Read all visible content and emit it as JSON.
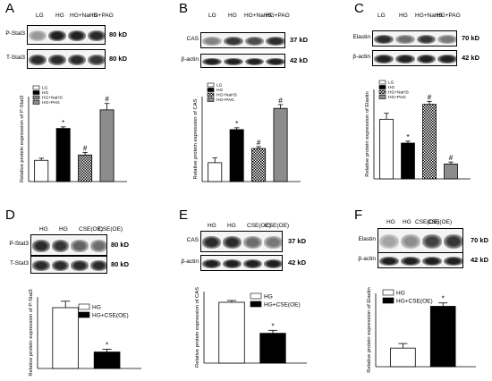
{
  "panels": [
    {
      "letter": "A",
      "lanes": [
        "LG",
        "HG",
        "HG+NaHS",
        "HG+PAG"
      ],
      "blot_rows": [
        {
          "label": "P-Stat3",
          "kd": "80 kD",
          "intensity": [
            0.35,
            0.9,
            0.9,
            0.85
          ]
        },
        {
          "label": "T-Stat3",
          "kd": "80 kD",
          "intensity": [
            0.85,
            0.85,
            0.85,
            0.8
          ]
        }
      ]
    },
    {
      "letter": "B",
      "lanes": [
        "LG",
        "HG",
        "HG+NaHS",
        "HG+PAG"
      ],
      "blot_rows": [
        {
          "label": "CAS",
          "kd": "37 kD",
          "intensity": [
            0.45,
            0.8,
            0.7,
            0.85
          ]
        },
        {
          "label": "β-actin",
          "kd": "42 kD",
          "intensity": [
            0.9,
            0.9,
            0.9,
            0.9
          ]
        }
      ]
    },
    {
      "letter": "C",
      "lanes": [
        "LG",
        "HG",
        "HG+NaHS",
        "HG+PAG"
      ],
      "blot_rows": [
        {
          "label": "Elastin",
          "kd": "70 kD",
          "intensity": [
            0.85,
            0.55,
            0.8,
            0.5
          ]
        },
        {
          "label": "β-actin",
          "kd": "42 kD",
          "intensity": [
            0.9,
            0.9,
            0.9,
            0.9
          ]
        }
      ]
    },
    {
      "letter": "D",
      "lanes": [
        "HG",
        "HG",
        "CSE(OE)",
        "CSE(OE)"
      ],
      "blot_rows": [
        {
          "label": "P-Stat3",
          "kd": "80 kD",
          "intensity": [
            0.85,
            0.8,
            0.6,
            0.55
          ]
        },
        {
          "label": "T-Stat3",
          "kd": "80 kD",
          "intensity": [
            0.85,
            0.85,
            0.85,
            0.85
          ]
        }
      ]
    },
    {
      "letter": "E",
      "lanes": [
        "HG",
        "HG",
        "CSE(OE)",
        "CSE(OE)"
      ],
      "blot_rows": [
        {
          "label": "CAS",
          "kd": "37 kD",
          "intensity": [
            0.85,
            0.85,
            0.55,
            0.5
          ]
        },
        {
          "label": "β-actin",
          "kd": "42 kD",
          "intensity": [
            0.9,
            0.9,
            0.9,
            0.9
          ]
        }
      ]
    },
    {
      "letter": "F",
      "lanes": [
        "HG",
        "HG",
        "CSE(OE)",
        "CSE(OE)"
      ],
      "blot_rows": [
        {
          "label": "Elastin",
          "kd": "70 kD",
          "intensity": [
            0.3,
            0.4,
            0.75,
            0.8
          ]
        },
        {
          "label": "β-actin",
          "kd": "42 kD",
          "intensity": [
            0.9,
            0.9,
            0.9,
            0.9
          ]
        }
      ]
    }
  ],
  "chart_data": [
    {
      "type": "bar",
      "ylabel": "Relative protein expression of P-Stat3",
      "ylim": [
        0,
        1.6
      ],
      "categories": [
        "LG",
        "HG",
        "HG+NaHS",
        "HG+PAG"
      ],
      "values": [
        0.4,
        1.0,
        0.5,
        1.35
      ],
      "errors": [
        0.04,
        0.03,
        0.05,
        0.12
      ],
      "annotations": [
        "",
        "*",
        "#",
        "#"
      ],
      "fills": [
        "white",
        "black",
        "checker",
        "gray"
      ],
      "legend": [
        "LG",
        "HG",
        "HG+NaHS",
        "HG+PAG"
      ],
      "legend_position": "top-left"
    },
    {
      "type": "bar",
      "ylabel": "Relative protein expression of CAS",
      "ylim": [
        0,
        1.8
      ],
      "categories": [
        "LG",
        "HG",
        "HG+NaHS",
        "HG+PAG"
      ],
      "values": [
        0.4,
        1.1,
        0.7,
        1.55
      ],
      "errors": [
        0.1,
        0.04,
        0.04,
        0.08
      ],
      "annotations": [
        "",
        "*",
        "#",
        "#"
      ],
      "fills": [
        "white",
        "black",
        "checker",
        "gray"
      ],
      "legend": [
        "LG",
        "HG",
        "HG+NaHS",
        "HG+PAG"
      ],
      "legend_position": "top-left"
    },
    {
      "type": "bar",
      "ylabel": "Relative protein expression of Elastin",
      "ylim": [
        0,
        0.9
      ],
      "categories": [
        "LG",
        "HG",
        "HG+NaHS",
        "HG+PAG"
      ],
      "values": [
        0.6,
        0.36,
        0.75,
        0.15
      ],
      "errors": [
        0.06,
        0.02,
        0.03,
        0.02
      ],
      "annotations": [
        "",
        "*",
        "#",
        "#"
      ],
      "fills": [
        "white",
        "black",
        "checker",
        "gray"
      ],
      "legend": [
        "LG",
        "HG",
        "HG+NaHS",
        "HG+PAG"
      ],
      "legend_position": "top-left"
    },
    {
      "type": "bar",
      "ylabel": "Relative protein expression of P-Stat3",
      "ylim": [
        0,
        1.0
      ],
      "categories": [
        "HG",
        "HG+CSE(OE)"
      ],
      "values": [
        0.85,
        0.23
      ],
      "errors": [
        0.09,
        0.04
      ],
      "annotations": [
        "",
        "*"
      ],
      "fills": [
        "white",
        "black"
      ],
      "legend": [
        "HG",
        "HG+CSE(OE)"
      ],
      "legend_position": "top-right"
    },
    {
      "type": "bar",
      "ylabel": "Relative protein expression of CAS",
      "ylim": [
        0,
        1.2
      ],
      "categories": [
        "HG",
        "HG+CSE(OE)"
      ],
      "values": [
        1.02,
        0.5
      ],
      "errors": [
        0.03,
        0.05
      ],
      "annotations": [
        "",
        "*"
      ],
      "fills": [
        "white",
        "black"
      ],
      "legend": [
        "HG",
        "HG+CSE(OE)"
      ],
      "legend_position": "top-right"
    },
    {
      "type": "bar",
      "ylabel": "Relative protein expression of Elastin",
      "ylim": [
        0,
        1.3
      ],
      "categories": [
        "HG",
        "HG+CSE(OE)"
      ],
      "values": [
        0.33,
        1.07
      ],
      "errors": [
        0.08,
        0.06
      ],
      "annotations": [
        "",
        "*"
      ],
      "fills": [
        "white",
        "black"
      ],
      "legend": [
        "HG",
        "HG+CSE(OE)"
      ],
      "legend_position": "top-left"
    }
  ]
}
